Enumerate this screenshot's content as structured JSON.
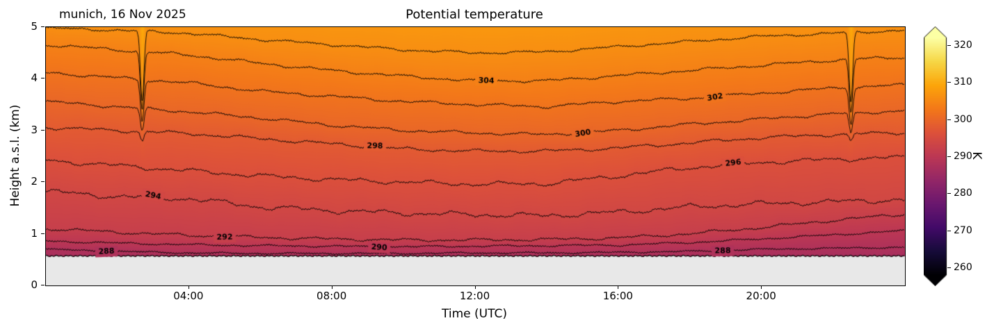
{
  "chart_data": {
    "type": "heatmap",
    "title": "Potential temperature",
    "annotation": "munich, 16 Nov 2025",
    "xlabel": "Time (UTC)",
    "ylabel": "Height a.s.l. (km)",
    "x_range_hours": [
      0,
      24
    ],
    "x_ticks": [
      {
        "hour": 4,
        "label": "04:00"
      },
      {
        "hour": 8,
        "label": "08:00"
      },
      {
        "hour": 12,
        "label": "12:00"
      },
      {
        "hour": 16,
        "label": "16:00"
      },
      {
        "hour": 20,
        "label": "20:00"
      }
    ],
    "y_range_km": [
      0,
      5
    ],
    "y_ticks": [
      {
        "km": 0,
        "label": "0"
      },
      {
        "km": 1,
        "label": "1"
      },
      {
        "km": 2,
        "label": "2"
      },
      {
        "km": 3,
        "label": "3"
      },
      {
        "km": 4,
        "label": "4"
      },
      {
        "km": 5,
        "label": "5"
      }
    ],
    "colorbar": {
      "label": "K",
      "ticks": [
        260,
        270,
        280,
        290,
        300,
        310,
        320
      ],
      "vmin": 258,
      "vmax": 322,
      "extend": "both",
      "colormap": "inferno"
    },
    "ground_height_km": 0.55,
    "sample_hours": [
      0,
      2,
      4,
      6,
      8,
      10,
      12,
      14,
      16,
      18,
      20,
      22,
      24
    ],
    "contours": [
      {
        "level": 288,
        "heights_km": [
          0.7,
          0.66,
          0.63,
          0.62,
          0.62,
          0.62,
          0.63,
          0.63,
          0.64,
          0.66,
          0.7,
          0.72,
          0.74
        ]
      },
      {
        "level": 290,
        "heights_km": [
          0.86,
          0.82,
          0.79,
          0.77,
          0.76,
          0.75,
          0.76,
          0.77,
          0.78,
          0.83,
          0.9,
          0.98,
          1.06
        ]
      },
      {
        "level": 292,
        "heights_km": [
          1.1,
          1.03,
          0.97,
          0.93,
          0.9,
          0.88,
          0.88,
          0.89,
          0.92,
          1.0,
          1.12,
          1.26,
          1.38
        ]
      },
      {
        "level": 294,
        "heights_km": [
          1.82,
          1.72,
          1.68,
          1.52,
          1.45,
          1.4,
          1.37,
          1.35,
          1.42,
          1.52,
          1.58,
          1.62,
          1.66
        ]
      },
      {
        "level": 296,
        "heights_km": [
          2.42,
          2.32,
          2.22,
          2.12,
          2.05,
          2.0,
          1.96,
          1.97,
          2.12,
          2.28,
          2.38,
          2.44,
          2.48
        ]
      },
      {
        "level": 298,
        "heights_km": [
          3.06,
          3.0,
          2.94,
          2.84,
          2.74,
          2.64,
          2.6,
          2.6,
          2.66,
          2.76,
          2.86,
          2.92,
          2.96
        ]
      },
      {
        "level": 300,
        "heights_km": [
          3.56,
          3.46,
          3.36,
          3.24,
          3.1,
          3.0,
          2.95,
          2.92,
          3.0,
          3.12,
          3.22,
          3.32,
          3.38
        ]
      },
      {
        "level": 302,
        "heights_km": [
          4.12,
          4.02,
          3.92,
          3.76,
          3.66,
          3.56,
          3.5,
          3.46,
          3.56,
          3.62,
          3.72,
          3.82,
          3.88
        ]
      },
      {
        "level": 304,
        "heights_km": [
          4.66,
          4.56,
          4.46,
          4.3,
          4.16,
          4.05,
          3.96,
          3.96,
          4.06,
          4.16,
          4.26,
          4.36,
          4.42
        ]
      },
      {
        "level": 306,
        "heights_km": [
          4.98,
          4.94,
          4.88,
          4.76,
          4.66,
          4.56,
          4.5,
          4.52,
          4.62,
          4.72,
          4.82,
          4.88,
          4.94
        ]
      }
    ],
    "contour_labels": [
      {
        "level": 288,
        "hour": 1.7
      },
      {
        "level": 294,
        "hour": 3.0
      },
      {
        "level": 292,
        "hour": 5.0
      },
      {
        "level": 298,
        "hour": 9.2
      },
      {
        "level": 290,
        "hour": 9.3
      },
      {
        "level": 304,
        "hour": 12.3
      },
      {
        "level": 300,
        "hour": 15.0
      },
      {
        "level": 302,
        "hour": 18.7
      },
      {
        "level": 296,
        "hour": 19.2
      },
      {
        "level": 288,
        "hour": 18.9
      }
    ],
    "spike_hours": [
      2.7,
      22.5
    ],
    "lapse_below_K_per_km": 8,
    "lapse_above_K_per_km": 2.5
  }
}
